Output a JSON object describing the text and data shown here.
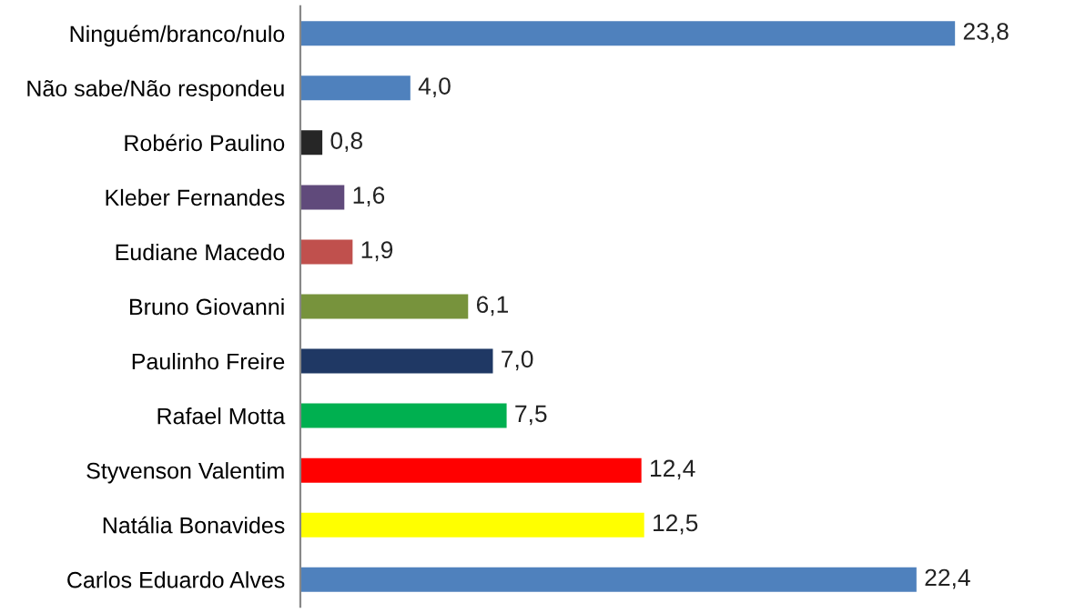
{
  "chart_data": {
    "type": "bar",
    "orientation": "horizontal",
    "value_labels": [
      "23,8",
      "4,0",
      "0,8",
      "1,6",
      "1,9",
      "6,1",
      "7,0",
      "7,5",
      "12,4",
      "12,5",
      "22,4"
    ],
    "grid": false,
    "legend": false,
    "categories": [
      "Ninguém/branco/nulo",
      "Não sabe/Não respondeu",
      "Robério Paulino",
      "Kleber Fernandes",
      "Eudiane Macedo",
      "Bruno Giovanni",
      "Paulinho Freire",
      "Rafael Motta",
      "Styvenson Valentim",
      "Natália Bonavides",
      "Carlos Eduardo Alves"
    ],
    "values": [
      23.8,
      4.0,
      0.8,
      1.6,
      1.9,
      6.1,
      7.0,
      7.5,
      12.4,
      12.5,
      22.4
    ],
    "colors": [
      "#4f81bd",
      "#4f81bd",
      "#262626",
      "#604a7b",
      "#c0504d",
      "#77933c",
      "#1f3864",
      "#00b050",
      "#ff0000",
      "#ffff00",
      "#4f81bd"
    ]
  }
}
